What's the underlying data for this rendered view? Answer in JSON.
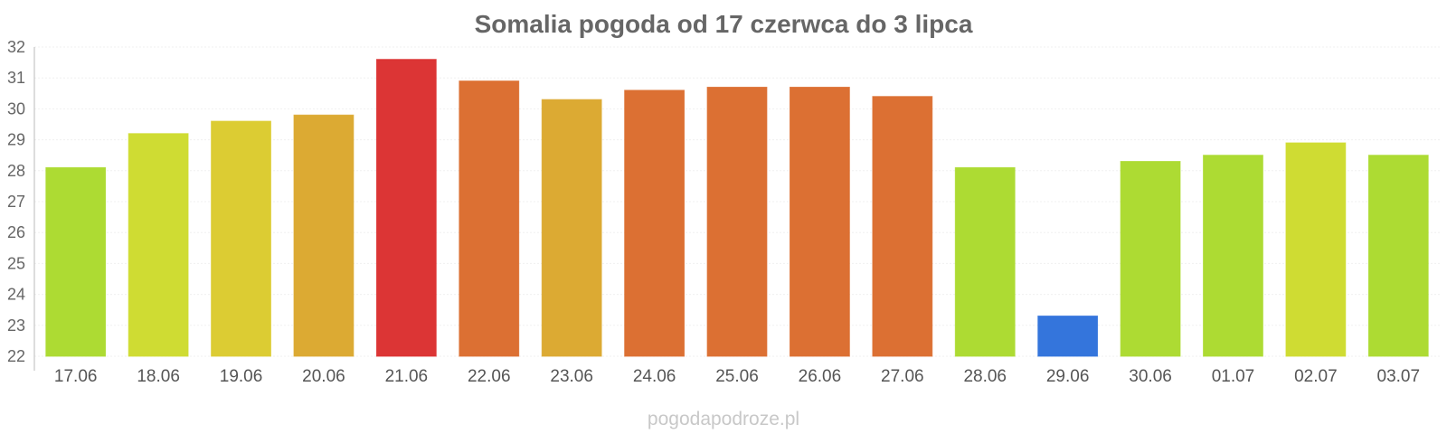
{
  "chart_data": {
    "type": "bar",
    "title": "Somalia pogoda od 17 czerwca do 3 lipca",
    "xlabel": "",
    "ylabel": "",
    "ylim": [
      22,
      32
    ],
    "yticks": [
      22,
      23,
      24,
      25,
      26,
      27,
      28,
      29,
      30,
      31,
      32
    ],
    "grid": true,
    "categories": [
      "17.06",
      "18.06",
      "19.06",
      "20.06",
      "21.06",
      "22.06",
      "23.06",
      "24.06",
      "25.06",
      "26.06",
      "27.06",
      "28.06",
      "29.06",
      "30.06",
      "01.07",
      "02.07",
      "03.07"
    ],
    "values": [
      28.1,
      29.2,
      29.6,
      29.8,
      31.6,
      30.9,
      30.3,
      30.6,
      30.7,
      30.7,
      30.4,
      28.1,
      23.3,
      28.3,
      28.5,
      28.9,
      28.5
    ],
    "colors": [
      "#addb33",
      "#cfdc33",
      "#dccc33",
      "#dcaa33",
      "#dc3535",
      "#dc7033",
      "#dcaa33",
      "#dc7033",
      "#dc7033",
      "#dc7033",
      "#dc7033",
      "#addb33",
      "#3475dc",
      "#addb33",
      "#addb33",
      "#cfdc33",
      "#addb33"
    ]
  },
  "footer": {
    "credit": "pogodapodroze.pl"
  }
}
